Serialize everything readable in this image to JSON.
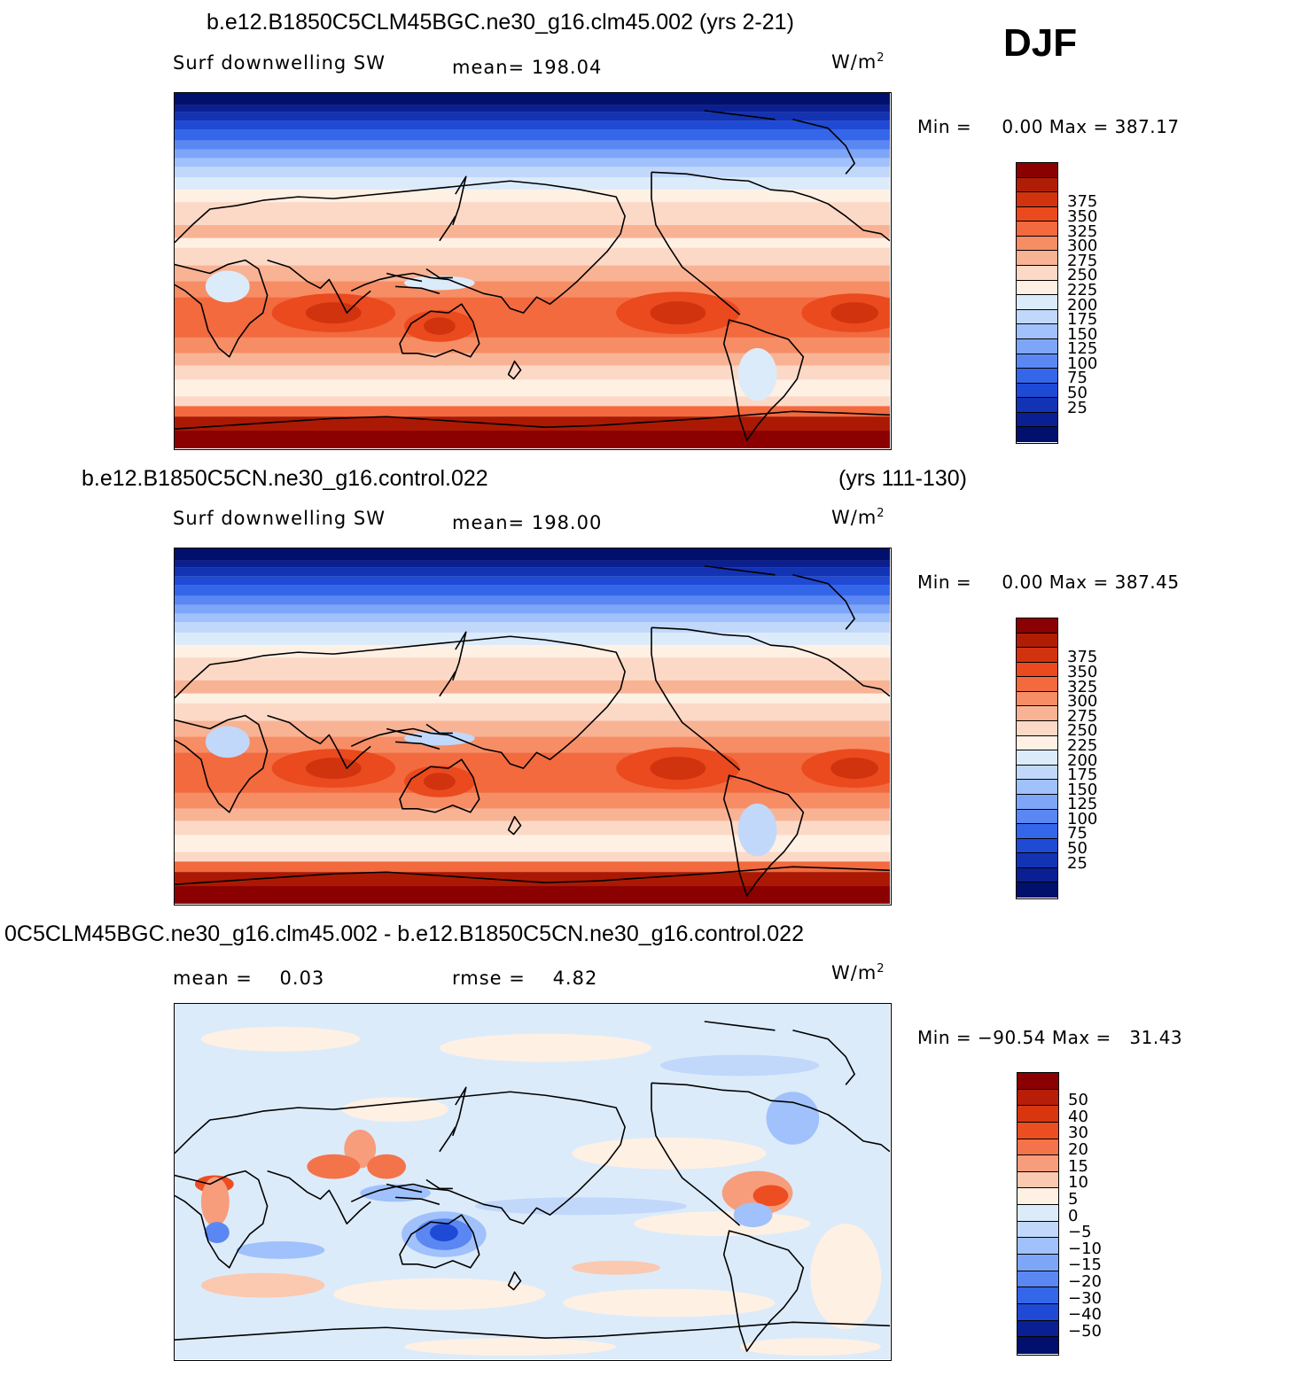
{
  "season": "DJF",
  "panels": [
    {
      "id": "panel-test",
      "case_title": "b.e12.B1850C5CLM45BGC.ne30_g16.clm45.002 (yrs 2-21)",
      "years": "",
      "variable": "Surf  downwelling  SW",
      "stat1_label": "mean=",
      "stat1_value": "198.04",
      "stat2_label": "",
      "stat2_value": "",
      "units_base": "W/m",
      "units_exp": "2",
      "min_label": "Min  =",
      "min_value": "0.00",
      "max_label": "Max  =",
      "max_value": "387.17",
      "field_type": "absolute"
    },
    {
      "id": "panel-control",
      "case_title": "b.e12.B1850C5CN.ne30_g16.control.022",
      "years": "(yrs 111-130)",
      "variable": "Surf  downwelling  SW",
      "stat1_label": "mean=",
      "stat1_value": "198.00",
      "stat2_label": "",
      "stat2_value": "",
      "units_base": "W/m",
      "units_exp": "2",
      "min_label": "Min  =",
      "min_value": "0.00",
      "max_label": "Max  =",
      "max_value": "387.45",
      "field_type": "absolute"
    },
    {
      "id": "panel-diff",
      "case_title": "0C5CLM45BGC.ne30_g16.clm45.002 - b.e12.B1850C5CN.ne30_g16.control.022",
      "years": "",
      "variable": "",
      "stat1_label": "mean  =",
      "stat1_value": "0.03",
      "stat2_label": "rmse  =",
      "stat2_value": "4.82",
      "units_base": "W/m",
      "units_exp": "2",
      "min_label": "Min  =",
      "min_value": "−90.54",
      "max_label": "Max  =",
      "max_value": "31.43",
      "field_type": "difference"
    }
  ],
  "colorbars": {
    "absolute": {
      "colors": [
        "#8b0000",
        "#b01d05",
        "#d1330e",
        "#ea4a1e",
        "#f26a3e",
        "#f68d65",
        "#f8b395",
        "#fcd9c6",
        "#fff0e4",
        "#dcebfa",
        "#c1d8fb",
        "#a0c1fb",
        "#7ea6f8",
        "#5b87f3",
        "#3466ea",
        "#1f4ad5",
        "#1233b3",
        "#0a1f92",
        "#00106c"
      ],
      "labels": [
        "375",
        "350",
        "325",
        "300",
        "275",
        "250",
        "225",
        "200",
        "175",
        "150",
        "125",
        "100",
        "75",
        "50",
        "25"
      ]
    },
    "difference": {
      "colors": [
        "#8b0000",
        "#b81e07",
        "#d8360f",
        "#ec4e21",
        "#f3744a",
        "#f79d7c",
        "#fbc8b0",
        "#fff0e4",
        "#dcebfa",
        "#c1d8fb",
        "#a0c1fb",
        "#7ea6f8",
        "#5b87f3",
        "#3466ea",
        "#1f4ad5",
        "#0a1f92",
        "#00106c"
      ],
      "labels": [
        "50",
        "40",
        "30",
        "20",
        "15",
        "10",
        "5",
        "0",
        "−5",
        "−10",
        "−15",
        "−20",
        "−30",
        "−40",
        "−50"
      ]
    }
  }
}
